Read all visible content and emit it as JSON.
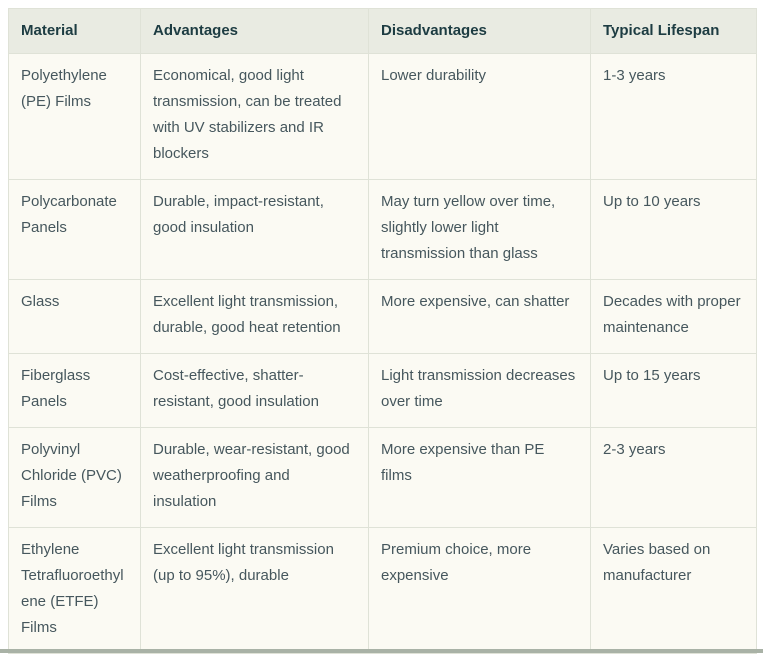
{
  "colors": {
    "page_bg": "#ffffff",
    "table_bg": "#fbfaf3",
    "header_bg": "#e9ebe2",
    "border": "#dfe2d7",
    "header_text": "#1d3c42",
    "body_text": "#46575d",
    "bottom_strip": "#a9b2a6"
  },
  "table": {
    "columns": [
      {
        "key": "material",
        "label": "Material"
      },
      {
        "key": "advantages",
        "label": "Advantages"
      },
      {
        "key": "disadvantages",
        "label": "Disadvantages"
      },
      {
        "key": "lifespan",
        "label": "Typical Lifespan"
      }
    ],
    "rows": [
      {
        "material": "Polyethylene (PE) Films",
        "advantages": "Economical, good light transmission, can be treated with UV stabilizers and IR blockers",
        "disadvantages": "Lower durability",
        "lifespan": "1-3 years"
      },
      {
        "material": "Polycarbonate Panels",
        "advantages": "Durable, impact-resistant, good insulation",
        "disadvantages": "May turn yellow over time, slightly lower light transmission than glass",
        "lifespan": "Up to 10 years"
      },
      {
        "material": "Glass",
        "advantages": "Excellent light transmission, durable, good heat retention",
        "disadvantages": "More expensive, can shatter",
        "lifespan": "Decades with proper maintenance"
      },
      {
        "material": "Fiberglass Panels",
        "advantages": "Cost-effective, shatter-resistant, good insulation",
        "disadvantages": "Light transmission decreases over time",
        "lifespan": "Up to 15 years"
      },
      {
        "material": "Polyvinyl Chloride (PVC) Films",
        "advantages": "Durable, wear-resistant, good weatherproofing and insulation",
        "disadvantages": "More expensive than PE films",
        "lifespan": "2-3 years"
      },
      {
        "material": "Ethylene Tetrafluoroethylene (ETFE) Films",
        "advantages": "Excellent light transmission (up to 95%), durable",
        "disadvantages": "Premium choice, more expensive",
        "lifespan": "Varies based on manufacturer"
      }
    ]
  }
}
